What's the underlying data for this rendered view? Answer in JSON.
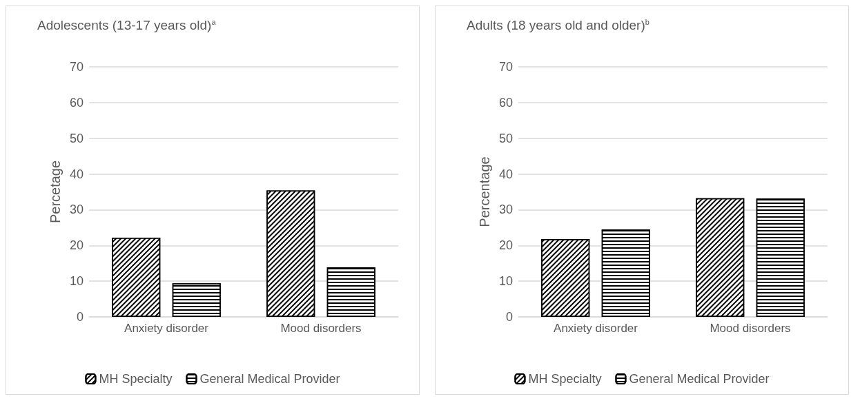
{
  "chart_data": [
    {
      "type": "bar",
      "title": "Adolescents (13-17 years old)$^{a}$",
      "ylabel": "Percetage",
      "categories": [
        "Anxiety disorder",
        "Mood disorders"
      ],
      "series": [
        {
          "name": "MH Specialty",
          "color": "#000000",
          "values": [
            22.2,
            35.4
          ]
        },
        {
          "name": "General Medical Provider",
          "color": "#000000",
          "values": [
            9.4,
            13.9
          ]
        }
      ],
      "ylim": [
        0,
        70
      ],
      "yticks": [
        0,
        10,
        20,
        30,
        40,
        50,
        60,
        70
      ],
      "grid": "y",
      "legend": "bottom"
    },
    {
      "type": "bar",
      "title": "Adults (18 years old and older)$^{b}$",
      "ylabel": "Percentage",
      "categories": [
        "Anxiety disorder",
        "Mood disorders"
      ],
      "series": [
        {
          "name": "MH Specialty",
          "color": "#000000",
          "values": [
            21.8,
            33.2
          ]
        },
        {
          "name": "General Medical Provider",
          "color": "#000000",
          "values": [
            24.5,
            33.1
          ]
        }
      ],
      "ylim": [
        0,
        70
      ],
      "yticks": [
        0,
        10,
        20,
        30,
        40,
        50,
        60,
        70
      ],
      "grid": "y",
      "legend": "bottom"
    }
  ]
}
